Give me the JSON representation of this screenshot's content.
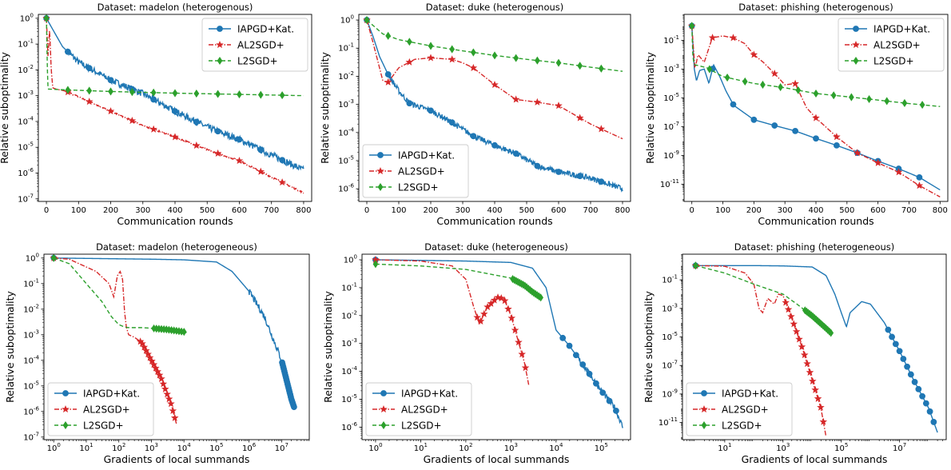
{
  "chart_data": [
    {
      "type": "line",
      "title": "Dataset: madelon (heterogenous)",
      "xlabel": "Communication rounds",
      "ylabel": "Relative suboptimality",
      "xscale": "linear",
      "yscale": "log",
      "xlim": [
        -25,
        825
      ],
      "ylim_exp": [
        -7.1,
        0.15
      ],
      "xticks": [
        0,
        100,
        200,
        300,
        400,
        500,
        600,
        700,
        800
      ],
      "xtick_labels": [
        "0",
        "100",
        "200",
        "300",
        "400",
        "500",
        "600",
        "700",
        "800"
      ],
      "yticks_exp": [
        0,
        -1,
        -2,
        -3,
        -4,
        -5,
        -6,
        -7
      ],
      "ytick_labels": [
        "10^0",
        "10^-1",
        "10^-2",
        "10^-3",
        "10^-4",
        "10^-5",
        "10^-6",
        "10^-7"
      ],
      "legend_position": "top-right",
      "grid": false,
      "series": [
        {
          "name": "IAPGD+Kat.",
          "color": "#1f77b4",
          "dash": "",
          "marker": "circle",
          "noise": 0.13,
          "marker_count": 12,
          "x": [
            0,
            50,
            100,
            200,
            300,
            400,
            500,
            600,
            700,
            800
          ],
          "y": [
            1,
            0.08,
            0.02,
            0.004,
            0.0012,
            0.00025,
            6e-05,
            2e-05,
            5e-06,
            1.3e-06
          ]
        },
        {
          "name": "AL2SGD+",
          "color": "#d62728",
          "dash": "6,2,1.5,2",
          "marker": "star",
          "noise": 0.03,
          "marker_count": 12,
          "x": [
            0,
            5,
            10,
            15,
            20,
            30,
            60,
            100,
            200,
            300,
            400,
            500,
            600,
            700,
            800
          ],
          "y": [
            1,
            0.03,
            0.4,
            0.01,
            0.002,
            0.0018,
            0.0015,
            0.0009,
            0.00025,
            7e-05,
            2.5e-05,
            8e-06,
            3e-06,
            7e-07,
            1.7e-07
          ]
        },
        {
          "name": "L2SGD+",
          "color": "#2ca02c",
          "dash": "5,3",
          "marker": "diamond",
          "noise": 0,
          "marker_count": 12,
          "x": [
            0,
            2,
            4,
            6,
            50,
            200,
            400,
            600,
            800
          ],
          "y": [
            1,
            0.05,
            0.003,
            0.0018,
            0.0017,
            0.00145,
            0.00125,
            0.00112,
            0.001
          ]
        }
      ]
    },
    {
      "type": "line",
      "title": "Dataset: duke (heterogenous)",
      "xlabel": "Communication rounds",
      "ylabel": "Relative suboptimality",
      "xscale": "linear",
      "yscale": "log",
      "xlim": [
        -25,
        825
      ],
      "ylim_exp": [
        -6.45,
        0.2
      ],
      "xticks": [
        0,
        100,
        200,
        300,
        400,
        500,
        600,
        700,
        800
      ],
      "xtick_labels": [
        "0",
        "100",
        "200",
        "300",
        "400",
        "500",
        "600",
        "700",
        "800"
      ],
      "yticks_exp": [
        0,
        -1,
        -2,
        -3,
        -4,
        -5,
        -6
      ],
      "ytick_labels": [
        "10^0",
        "10^-1",
        "10^-2",
        "10^-3",
        "10^-4",
        "10^-5",
        "10^-6"
      ],
      "legend_position": "bottom-left",
      "grid": false,
      "series": [
        {
          "name": "IAPGD+Kat.",
          "color": "#1f77b4",
          "dash": "",
          "marker": "circle",
          "noise": 0.1,
          "marker_count": 12,
          "x": [
            0,
            20,
            40,
            66,
            100,
            133,
            200,
            266,
            333,
            400,
            466,
            533,
            600,
            700,
            800
          ],
          "y": [
            1,
            0.25,
            0.05,
            0.012,
            0.003,
            0.0011,
            0.0006,
            0.00023,
            7.5e-05,
            3.5e-05,
            1.8e-05,
            6.5e-06,
            4e-06,
            2.4e-06,
            1e-06
          ]
        },
        {
          "name": "AL2SGD+",
          "color": "#d62728",
          "dash": "6,2,1.5,2",
          "marker": "star",
          "noise": 0,
          "marker_count": 12,
          "x": [
            0,
            20,
            50,
            66,
            100,
            150,
            200,
            266,
            300,
            333,
            400,
            466,
            533,
            600,
            700,
            800
          ],
          "y": [
            1,
            0.15,
            0.007,
            0.006,
            0.02,
            0.04,
            0.045,
            0.04,
            0.03,
            0.02,
            0.005,
            0.0015,
            0.0012,
            0.0009,
            0.0002,
            6e-05
          ]
        },
        {
          "name": "L2SGD+",
          "color": "#2ca02c",
          "dash": "5,3",
          "marker": "diamond",
          "noise": 0,
          "marker_count": 12,
          "x": [
            0,
            50,
            100,
            200,
            300,
            400,
            500,
            600,
            700,
            800
          ],
          "y": [
            1,
            0.32,
            0.2,
            0.12,
            0.08,
            0.055,
            0.04,
            0.03,
            0.021,
            0.015
          ]
        }
      ]
    },
    {
      "type": "line",
      "title": "Dataset: phishing (heterogenous)",
      "xlabel": "Communication rounds",
      "ylabel": "Relative suboptimality",
      "xscale": "linear",
      "yscale": "log",
      "xlim": [
        -25,
        825
      ],
      "ylim_exp": [
        -12.2,
        0.8
      ],
      "xticks": [
        0,
        100,
        200,
        300,
        400,
        500,
        600,
        700,
        800
      ],
      "xtick_labels": [
        "0",
        "100",
        "200",
        "300",
        "400",
        "500",
        "600",
        "700",
        "800"
      ],
      "yticks_exp": [
        -1,
        -3,
        -5,
        -7,
        -9,
        -11
      ],
      "ytick_labels": [
        "10^-1",
        "10^-3",
        "10^-5",
        "10^-7",
        "10^-9",
        "10^-11"
      ],
      "legend_position": "top-right",
      "grid": false,
      "series": [
        {
          "name": "IAPGD+Kat.",
          "color": "#1f77b4",
          "dash": "",
          "marker": "circle",
          "noise": 0,
          "marker_count": 12,
          "x": [
            0,
            8,
            15,
            25,
            40,
            55,
            70,
            90,
            110,
            135,
            200,
            266,
            333,
            400,
            466,
            533,
            600,
            666,
            733,
            800
          ],
          "y": [
            1,
            0.001,
            0.00015,
            0.0008,
            0.001,
            0.0001,
            0.002,
            0.0003,
            3e-05,
            3e-06,
            3e-07,
            1.2e-07,
            5e-08,
            1.5e-08,
            5e-09,
            1.5e-09,
            4e-10,
            1.2e-10,
            3e-11,
            4e-12
          ]
        },
        {
          "name": "AL2SGD+",
          "color": "#d62728",
          "dash": "6,2,1.5,2",
          "marker": "star",
          "noise": 0,
          "marker_count": 12,
          "x": [
            0,
            10,
            20,
            40,
            66,
            100,
            133,
            170,
            200,
            230,
            266,
            300,
            333,
            370,
            400,
            466,
            533,
            600,
            666,
            733,
            800
          ],
          "y": [
            1,
            0.001,
            0.01,
            0.003,
            0.15,
            0.2,
            0.15,
            0.06,
            0.01,
            0.003,
            0.0005,
            8e-05,
            0.0001,
            2e-06,
            4e-07,
            2e-08,
            1.5e-09,
            3e-10,
            7e-11,
            8e-12,
            1.3e-12
          ]
        },
        {
          "name": "L2SGD+",
          "color": "#2ca02c",
          "dash": "5,3",
          "marker": "diamond",
          "noise": 0,
          "marker_count": 14,
          "x": [
            0,
            3,
            6,
            10,
            50,
            100,
            200,
            300,
            400,
            500,
            600,
            700,
            800
          ],
          "y": [
            1,
            0.01,
            0.003,
            0.002,
            0.0012,
            0.0003,
            0.0001,
            5e-05,
            2e-05,
            1.2e-05,
            7e-06,
            4e-06,
            2.5e-06
          ]
        }
      ]
    },
    {
      "type": "line",
      "title": "Dataset: madelon (heterogeneous)",
      "xlabel": "Gradients of local summands",
      "ylabel": "Relative suboptimality",
      "xscale": "log",
      "yscale": "log",
      "xlim_exp": [
        -0.3,
        7.85
      ],
      "ylim_exp": [
        -7.1,
        0.15
      ],
      "xticks_exp": [
        0,
        1,
        2,
        3,
        4,
        5,
        6,
        7
      ],
      "xtick_labels": [
        "10^0",
        "10^1",
        "10^2",
        "10^3",
        "10^4",
        "10^5",
        "10^6",
        "10^7"
      ],
      "yticks_exp": [
        0,
        -1,
        -2,
        -3,
        -4,
        -5,
        -6,
        -7
      ],
      "ytick_labels": [
        "10^0",
        "10^-1",
        "10^-2",
        "10^-3",
        "10^-4",
        "10^-5",
        "10^-6",
        "10^-7"
      ],
      "legend_position": "bottom-left",
      "grid": false,
      "series": [
        {
          "name": "IAPGD+Kat.",
          "color": "#1f77b4",
          "dash": "",
          "marker": "circle",
          "noise": 0.13,
          "noise_from": 1000000,
          "marker_count": 24,
          "marker_from": 10000000,
          "x": [
            1,
            1000,
            10000,
            100000,
            300000,
            1000000,
            3000000,
            10000000,
            20000000,
            25000000
          ],
          "y": [
            1,
            0.9,
            0.85,
            0.7,
            0.3,
            0.05,
            0.005,
            0.0001,
            3e-06,
            1.3e-06
          ]
        },
        {
          "name": "AL2SGD+",
          "color": "#d62728",
          "dash": "6,2,1.5,2",
          "marker": "star",
          "noise": 0,
          "marker_count": 20,
          "marker_from": 400,
          "x": [
            1,
            3,
            6,
            20,
            50,
            70,
            90,
            110,
            130,
            150,
            170,
            200,
            300,
            500,
            1000,
            2000,
            3000,
            4000,
            5000,
            6000
          ],
          "y": [
            1,
            0.9,
            0.6,
            0.3,
            0.1,
            0.03,
            0.2,
            0.3,
            0.15,
            0.008,
            0.002,
            0.001,
            0.0008,
            0.0005,
            0.0001,
            2e-05,
            5e-06,
            2e-06,
            7e-07,
            3e-07
          ]
        },
        {
          "name": "L2SGD+",
          "color": "#2ca02c",
          "dash": "5,3",
          "marker": "diamond",
          "noise": 0,
          "marker_count": 14,
          "marker_from": 1000,
          "x": [
            1,
            3,
            10,
            30,
            60,
            100,
            150,
            200,
            500,
            1000,
            3000,
            10000,
            12000
          ],
          "y": [
            1,
            0.6,
            0.1,
            0.02,
            0.005,
            0.0025,
            0.002,
            0.0019,
            0.0019,
            0.0018,
            0.0016,
            0.0013,
            0.0012
          ]
        }
      ]
    },
    {
      "type": "line",
      "title": "Dataset: duke (heterogeneous)",
      "xlabel": "Gradients of local summands",
      "ylabel": "Relative suboptimality",
      "xscale": "log",
      "yscale": "log",
      "xlim_exp": [
        -0.3,
        5.65
      ],
      "ylim_exp": [
        -6.45,
        0.2
      ],
      "xticks_exp": [
        0,
        1,
        2,
        3,
        4,
        5
      ],
      "xtick_labels": [
        "10^0",
        "10^1",
        "10^2",
        "10^3",
        "10^4",
        "10^5"
      ],
      "yticks_exp": [
        0,
        -1,
        -2,
        -3,
        -4,
        -5,
        -6
      ],
      "ytick_labels": [
        "10^0",
        "10^-1",
        "10^-2",
        "10^-3",
        "10^-4",
        "10^-5",
        "10^-6"
      ],
      "legend_position": "bottom-left",
      "grid": false,
      "series": [
        {
          "name": "IAPGD+Kat.",
          "color": "#1f77b4",
          "dash": "",
          "marker": "circle",
          "noise": 0.1,
          "noise_from": 30000,
          "marker_count": 10,
          "marker_from": 10000,
          "x": [
            1,
            10,
            100,
            1000,
            3000,
            6000,
            10000,
            20000,
            50000,
            100000,
            200000,
            300000
          ],
          "y": [
            1,
            0.95,
            0.9,
            0.8,
            0.5,
            0.1,
            0.003,
            0.0008,
            0.0001,
            2e-05,
            5e-06,
            1e-06
          ]
        },
        {
          "name": "AL2SGD+",
          "color": "#d62728",
          "dash": "6,2,1.5,2",
          "marker": "star",
          "noise": 0,
          "marker_count": 16,
          "marker_from": 150,
          "x": [
            1,
            10,
            50,
            100,
            150,
            200,
            300,
            500,
            700,
            1000,
            1500,
            2000,
            2500
          ],
          "y": [
            1,
            0.9,
            0.6,
            0.2,
            0.02,
            0.005,
            0.02,
            0.045,
            0.04,
            0.01,
            0.001,
            0.0002,
            3e-05
          ]
        },
        {
          "name": "L2SGD+",
          "color": "#2ca02c",
          "dash": "5,3",
          "marker": "diamond",
          "noise": 0,
          "marker_count": 18,
          "marker_from": 1000,
          "x": [
            1,
            10,
            100,
            1000,
            2000,
            3000,
            5000
          ],
          "y": [
            0.7,
            0.6,
            0.45,
            0.22,
            0.12,
            0.07,
            0.04
          ]
        }
      ]
    },
    {
      "type": "line",
      "title": "Dataset: phishing (heterogeneous)",
      "xlabel": "Gradients of local summands",
      "ylabel": "Relative suboptimality",
      "xscale": "log",
      "yscale": "log",
      "xlim_exp": [
        -0.45,
        8.6
      ],
      "ylim_exp": [
        -12.2,
        0.8
      ],
      "xticks_exp": [
        1,
        3,
        5,
        7
      ],
      "xtick_labels": [
        "10^1",
        "10^3",
        "10^5",
        "10^7"
      ],
      "yticks_exp": [
        -1,
        -3,
        -5,
        -7,
        -9,
        -11
      ],
      "ytick_labels": [
        "10^-1",
        "10^-3",
        "10^-5",
        "10^-7",
        "10^-9",
        "10^-11"
      ],
      "legend_position": "bottom-left",
      "grid": false,
      "series": [
        {
          "name": "IAPGD+Kat.",
          "color": "#1f77b4",
          "dash": "",
          "marker": "circle",
          "noise": 0,
          "marker_count": 14,
          "marker_from": 3000000,
          "x": [
            1,
            100,
            1000,
            10000,
            30000,
            60000,
            100000,
            150000,
            200000,
            500000,
            1000000,
            3000000,
            10000000,
            30000000,
            100000000,
            200000000
          ],
          "y": [
            1,
            1,
            0.95,
            0.8,
            0.2,
            0.01,
            0.0005,
            5e-05,
            0.0005,
            0.003,
            0.002,
            0.0001,
            1e-06,
            1e-08,
            1e-10,
            2e-12
          ]
        },
        {
          "name": "AL2SGD+",
          "color": "#d62728",
          "dash": "6,2,1.5,2",
          "marker": "star",
          "noise": 0,
          "marker_count": 16,
          "marker_from": 1000,
          "x": [
            1,
            10,
            50,
            100,
            150,
            200,
            300,
            500,
            700,
            1000,
            2000,
            5000,
            10000,
            20000,
            30000
          ],
          "y": [
            1,
            0.9,
            0.3,
            0.05,
            0.001,
            0.0005,
            0.005,
            0.002,
            0.01,
            0.008,
            0.0002,
            1e-06,
            1e-08,
            1e-10,
            1e-12
          ]
        },
        {
          "name": "L2SGD+",
          "color": "#2ca02c",
          "dash": "5,3",
          "marker": "diamond",
          "noise": 0,
          "marker_count": 18,
          "marker_from": 5000,
          "x": [
            1,
            10,
            100,
            1000,
            3000,
            10000,
            30000,
            50000
          ],
          "y": [
            1,
            0.3,
            0.05,
            0.01,
            0.002,
            0.0003,
            4e-05,
            1.5e-05
          ]
        }
      ]
    }
  ]
}
